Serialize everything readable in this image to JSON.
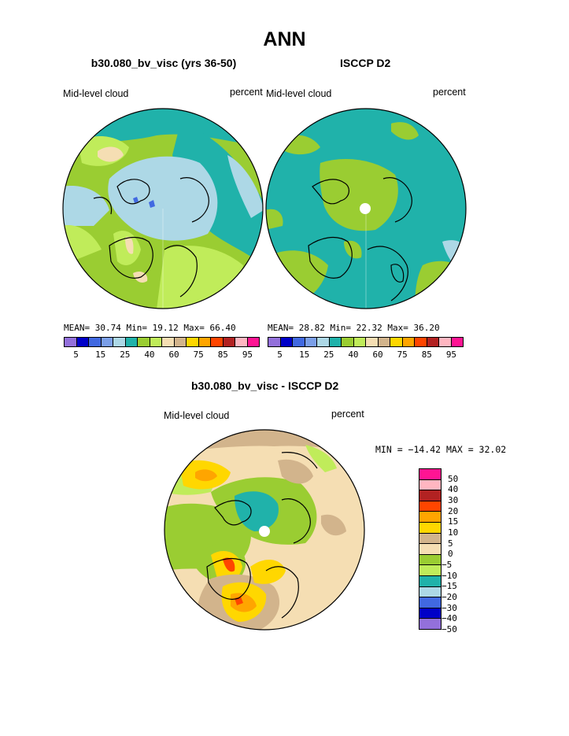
{
  "title": "ANN",
  "panel1": {
    "title": "b30.080_bv_visc (yrs 36-50)",
    "variable": "Mid-level cloud",
    "units": "percent",
    "stats": {
      "mean_label": "MEAN=",
      "mean": "30.74",
      "min_label": "Min=",
      "min": "19.12",
      "max_label": "Max=",
      "max": "66.40"
    }
  },
  "panel2": {
    "title": "ISCCP D2",
    "variable": "Mid-level cloud",
    "units": "percent",
    "stats": {
      "mean_label": "MEAN=",
      "mean": "28.82",
      "min_label": "Min=",
      "min": "22.32",
      "max_label": "Max=",
      "max": "36.20"
    }
  },
  "abs_colorbar": {
    "colors": [
      "#9370db",
      "#0000c8",
      "#4169e1",
      "#7b9fe8",
      "#add8e6",
      "#20b2aa",
      "#9acd32",
      "#c0ec5a",
      "#f5deb3",
      "#d2b48c",
      "#ffd700",
      "#ffa500",
      "#ff4500",
      "#b22222",
      "#ffb6c1",
      "#ff1493"
    ],
    "ticks": [
      "5",
      "15",
      "25",
      "40",
      "60",
      "75",
      "85",
      "95"
    ]
  },
  "diff_panel": {
    "title": "b30.080_bv_visc - ISCCP D2",
    "variable": "Mid-level cloud",
    "units": "percent",
    "minmax": "MIN = −14.42 MAX =  32.02"
  },
  "diff_colorbar": {
    "colors": [
      "#ff1493",
      "#ffb6c1",
      "#b22222",
      "#ff4500",
      "#ffa500",
      "#ffd700",
      "#d2b48c",
      "#f5deb3",
      "#9acd32",
      "#c0ec5a",
      "#20b2aa",
      "#add8e6",
      "#4169e1",
      "#0000c8",
      "#9370db"
    ],
    "ticks": [
      "50",
      "40",
      "30",
      "20",
      "15",
      "10",
      "5",
      "0",
      "−5",
      "−10",
      "−15",
      "−20",
      "−30",
      "−40",
      "−50"
    ]
  }
}
